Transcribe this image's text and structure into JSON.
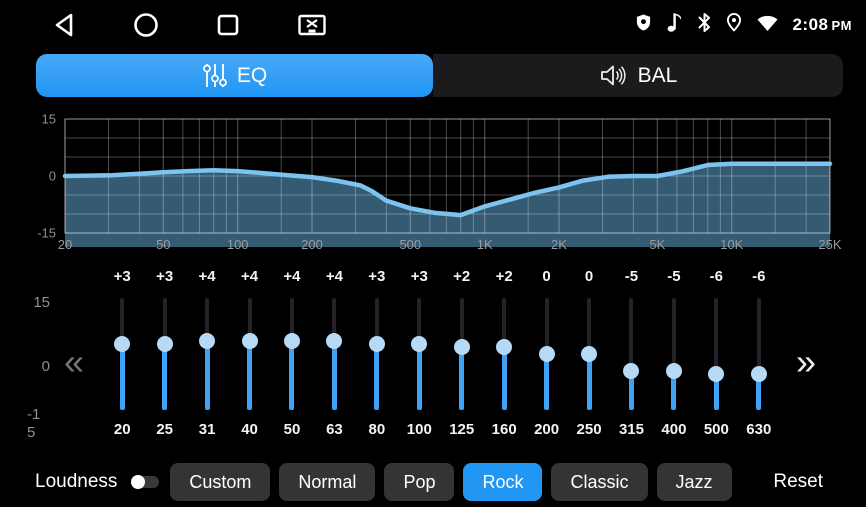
{
  "status_bar": {
    "time": "2:08",
    "period": "PM",
    "nav_icons": [
      "back",
      "home",
      "recents",
      "screenshot"
    ],
    "status_icons": [
      "shield",
      "music-note",
      "bluetooth",
      "location",
      "wifi"
    ]
  },
  "tabs": [
    {
      "id": "eq",
      "label": "EQ",
      "icon": "equalizer-sliders-icon",
      "active": true
    },
    {
      "id": "bal",
      "label": "BAL",
      "icon": "speaker-icon",
      "active": false
    }
  ],
  "chart_data": {
    "type": "area",
    "x_scale": "log",
    "x_range_hz": [
      20,
      25000
    ],
    "y_range_db": [
      -15,
      15
    ],
    "grid": true,
    "x_ticks": [
      {
        "hz": 20,
        "label": "20"
      },
      {
        "hz": 50,
        "label": "50"
      },
      {
        "hz": 100,
        "label": "100"
      },
      {
        "hz": 200,
        "label": "200"
      },
      {
        "hz": 500,
        "label": "500"
      },
      {
        "hz": 1000,
        "label": "1K"
      },
      {
        "hz": 2000,
        "label": "2K"
      },
      {
        "hz": 5000,
        "label": "5K"
      },
      {
        "hz": 10000,
        "label": "10K"
      },
      {
        "hz": 25000,
        "label": "25K"
      }
    ],
    "y_ticks": [
      {
        "db": 15,
        "label": "15"
      },
      {
        "db": 0,
        "label": "0"
      },
      {
        "db": -15,
        "label": "-15"
      }
    ],
    "minor_x_gridlines_hz": [
      30,
      40,
      60,
      70,
      80,
      90,
      150,
      300,
      400,
      600,
      700,
      800,
      900,
      1500,
      3000,
      4000,
      6000,
      7000,
      8000,
      9000,
      15000,
      20000
    ],
    "points": [
      [
        20,
        0
      ],
      [
        25,
        0.1
      ],
      [
        31,
        0.2
      ],
      [
        40,
        0.6
      ],
      [
        50,
        1
      ],
      [
        63,
        1.3
      ],
      [
        80,
        1.5
      ],
      [
        100,
        1.3
      ],
      [
        125,
        0.8
      ],
      [
        160,
        0.2
      ],
      [
        200,
        -0.3
      ],
      [
        250,
        -1.2
      ],
      [
        315,
        -2.5
      ],
      [
        350,
        -4
      ],
      [
        400,
        -6.5
      ],
      [
        500,
        -8.5
      ],
      [
        630,
        -9.7
      ],
      [
        800,
        -10.3
      ],
      [
        1000,
        -8
      ],
      [
        1250,
        -6.3
      ],
      [
        1600,
        -4.4
      ],
      [
        2000,
        -3
      ],
      [
        2500,
        -1.2
      ],
      [
        3150,
        -0.2
      ],
      [
        4000,
        0
      ],
      [
        5000,
        0
      ],
      [
        6300,
        1.2
      ],
      [
        8000,
        2.9
      ],
      [
        10000,
        3.2
      ],
      [
        15000,
        3.2
      ],
      [
        25000,
        3.2
      ]
    ]
  },
  "equalizer": {
    "y_axis_labels": [
      "15",
      "0",
      "-15"
    ],
    "prev_arrow": "«",
    "next_arrow": "»",
    "bands": [
      {
        "freq": "20",
        "gain_label": "+3",
        "gain_db": 3
      },
      {
        "freq": "25",
        "gain_label": "+3",
        "gain_db": 3
      },
      {
        "freq": "31",
        "gain_label": "+4",
        "gain_db": 4
      },
      {
        "freq": "40",
        "gain_label": "+4",
        "gain_db": 4
      },
      {
        "freq": "50",
        "gain_label": "+4",
        "gain_db": 4
      },
      {
        "freq": "63",
        "gain_label": "+4",
        "gain_db": 4
      },
      {
        "freq": "80",
        "gain_label": "+3",
        "gain_db": 3
      },
      {
        "freq": "100",
        "gain_label": "+3",
        "gain_db": 3
      },
      {
        "freq": "125",
        "gain_label": "+2",
        "gain_db": 2
      },
      {
        "freq": "160",
        "gain_label": "+2",
        "gain_db": 2
      },
      {
        "freq": "200",
        "gain_label": "0",
        "gain_db": 0
      },
      {
        "freq": "250",
        "gain_label": "0",
        "gain_db": 0
      },
      {
        "freq": "315",
        "gain_label": "-5",
        "gain_db": -5
      },
      {
        "freq": "400",
        "gain_label": "-5",
        "gain_db": -5
      },
      {
        "freq": "500",
        "gain_label": "-6",
        "gain_db": -6
      },
      {
        "freq": "630",
        "gain_label": "-6",
        "gain_db": -6
      }
    ]
  },
  "footer": {
    "loudness_label": "Loudness",
    "loudness_enabled": false,
    "presets": [
      {
        "label": "Custom",
        "active": false
      },
      {
        "label": "Normal",
        "active": false
      },
      {
        "label": "Pop",
        "active": false
      },
      {
        "label": "Rock",
        "active": true
      },
      {
        "label": "Classic",
        "active": false
      },
      {
        "label": "Jazz",
        "active": false
      }
    ],
    "reset_label": "Reset"
  },
  "colors": {
    "accent": "#2196f3",
    "curve": "#7cc3ef",
    "chart_fill": "#355b72",
    "grid": "rgba(255,255,255,0.28)",
    "slider_fill": "#3fa2f4",
    "knob": "#b6daf6"
  }
}
